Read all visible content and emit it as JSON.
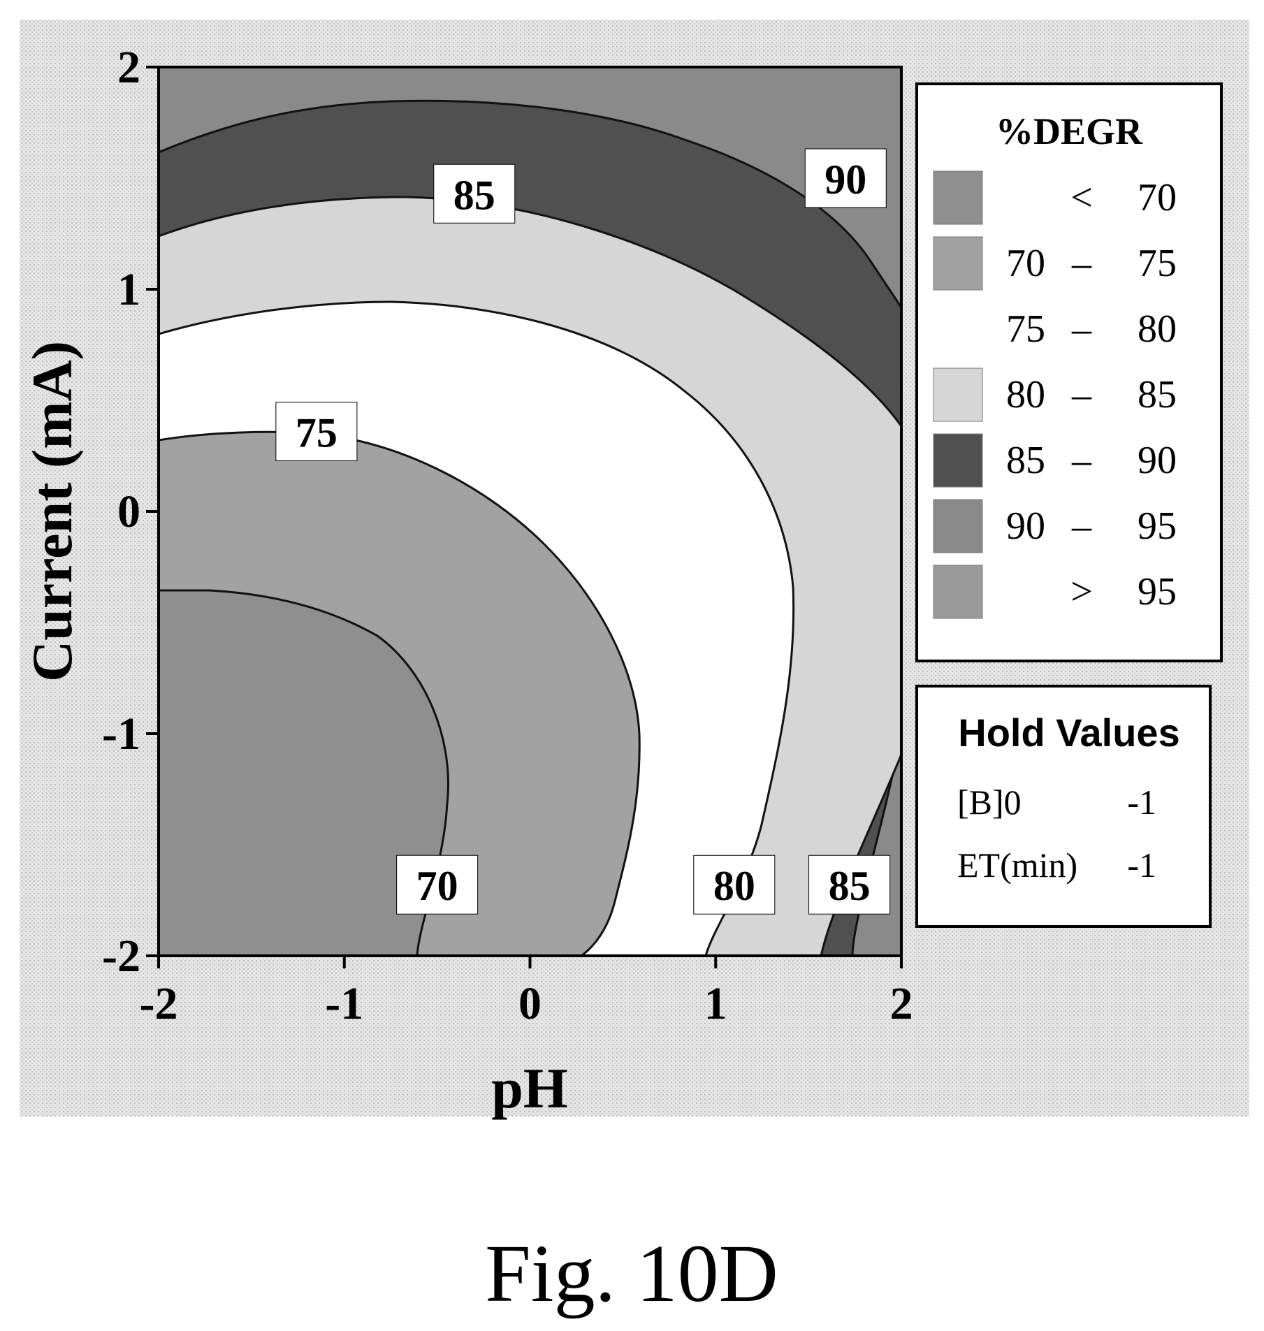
{
  "chart_data": {
    "type": "contour",
    "title": "",
    "xlabel": "pH",
    "ylabel": "Current (mA)",
    "xlim": [
      -2,
      2
    ],
    "ylim": [
      -2,
      2
    ],
    "x_ticks": [
      "-2",
      "-1",
      "0",
      "1",
      "2"
    ],
    "y_ticks": [
      "2",
      "1",
      "0",
      "-1",
      "-2"
    ],
    "response_name": "%DEGR",
    "contour_levels": [
      70,
      75,
      80,
      85,
      90
    ],
    "contour_labels": [
      {
        "text": "85",
        "x": -0.3,
        "y": 1.43
      },
      {
        "text": "90",
        "x": 1.7,
        "y": 1.5
      },
      {
        "text": "75",
        "x": -1.15,
        "y": 0.36
      },
      {
        "text": "70",
        "x": -0.5,
        "y": -1.68
      },
      {
        "text": "80",
        "x": 1.1,
        "y": -1.68
      },
      {
        "text": "85",
        "x": 1.72,
        "y": -1.68
      }
    ],
    "legend": {
      "title": "%DEGR",
      "placement": "right",
      "entries": [
        {
          "lo": "",
          "sep": "<",
          "hi": "70",
          "color": "#8f8f8f"
        },
        {
          "lo": "70",
          "sep": "–",
          "hi": "75",
          "color": "#a2a2a2"
        },
        {
          "lo": "75",
          "sep": "–",
          "hi": "80",
          "color": "#ffffff"
        },
        {
          "lo": "80",
          "sep": "–",
          "hi": "85",
          "color": "#d6d6d6"
        },
        {
          "lo": "85",
          "sep": "–",
          "hi": "90",
          "color": "#505050"
        },
        {
          "lo": "90",
          "sep": "–",
          "hi": "95",
          "color": "#8a8a8a"
        },
        {
          "lo": "",
          "sep": ">",
          "hi": "95",
          "color": "#9a9a9a"
        }
      ]
    },
    "hold_values": {
      "title": "Hold Values",
      "items": [
        {
          "name": "[B]0",
          "value": "-1"
        },
        {
          "name": "ET(min)",
          "value": "-1"
        }
      ]
    }
  },
  "caption": "Fig. 10D"
}
